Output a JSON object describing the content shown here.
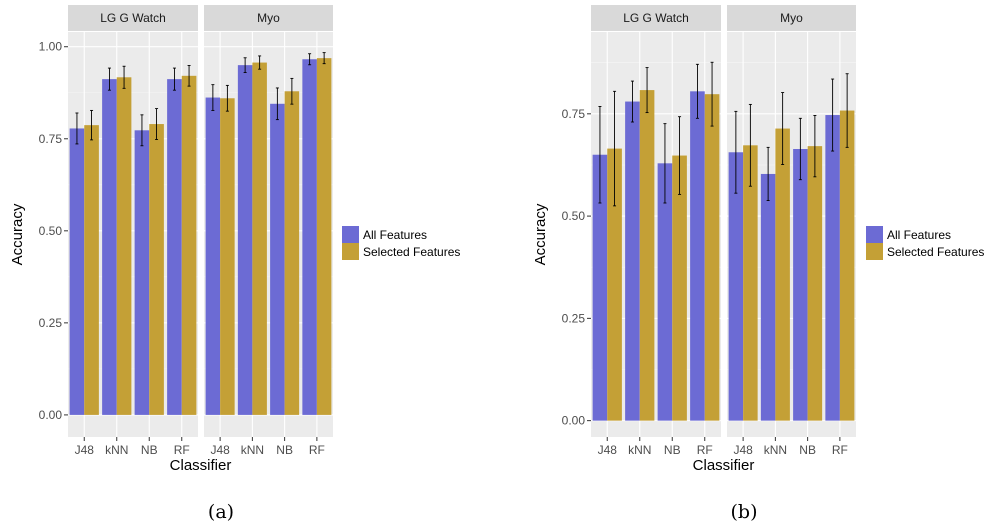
{
  "chart_data": [
    {
      "type": "bar",
      "caption": "(a)",
      "facets": [
        "LG G Watch",
        "Myo"
      ],
      "categories": [
        "J48",
        "kNN",
        "NB",
        "RF"
      ],
      "xlabel": "Classifier",
      "ylabel": "Accuracy",
      "ylim": [
        -0.06,
        1.04
      ],
      "yticks": [
        0.0,
        0.25,
        0.5,
        0.75,
        1.0
      ],
      "ytick_labels": [
        "0.00",
        "0.25",
        "0.50",
        "0.75",
        "1.00"
      ],
      "legend_position": "right",
      "grid": true,
      "series": [
        {
          "name": "All Features",
          "color": "#6c6bd4",
          "values": {
            "LG G Watch": [
              0.778,
              0.912,
              0.773,
              0.912
            ],
            "Myo": [
              0.862,
              0.95,
              0.845,
              0.966
            ]
          },
          "errors": {
            "LG G Watch": [
              0.042,
              0.03,
              0.042,
              0.03
            ],
            "Myo": [
              0.035,
              0.02,
              0.043,
              0.015
            ]
          }
        },
        {
          "name": "Selected Features",
          "color": "#c4a036",
          "values": {
            "LG G Watch": [
              0.787,
              0.917,
              0.79,
              0.921
            ],
            "Myo": [
              0.86,
              0.957,
              0.879,
              0.969
            ]
          },
          "errors": {
            "LG G Watch": [
              0.04,
              0.03,
              0.042,
              0.028
            ],
            "Myo": [
              0.035,
              0.018,
              0.035,
              0.015
            ]
          }
        }
      ]
    },
    {
      "type": "bar",
      "caption": "(b)",
      "facets": [
        "LG G Watch",
        "Myo"
      ],
      "categories": [
        "J48",
        "kNN",
        "NB",
        "RF"
      ],
      "xlabel": "Classifier",
      "ylabel": "Accuracy",
      "ylim": [
        -0.04,
        0.95
      ],
      "yticks": [
        0.0,
        0.25,
        0.5,
        0.75
      ],
      "ytick_labels": [
        "0.00",
        "0.25",
        "0.50",
        "0.75"
      ],
      "legend_position": "right",
      "grid": true,
      "series": [
        {
          "name": "All Features",
          "color": "#6c6bd4",
          "values": {
            "LG G Watch": [
              0.65,
              0.78,
              0.629,
              0.805
            ],
            "Myo": [
              0.656,
              0.603,
              0.664,
              0.747
            ]
          },
          "errors": {
            "LG G Watch": [
              0.118,
              0.05,
              0.097,
              0.066
            ],
            "Myo": [
              0.1,
              0.065,
              0.075,
              0.088
            ]
          }
        },
        {
          "name": "Selected Features",
          "color": "#c4a036",
          "values": {
            "LG G Watch": [
              0.665,
              0.808,
              0.648,
              0.798
            ],
            "Myo": [
              0.673,
              0.714,
              0.671,
              0.758
            ]
          },
          "errors": {
            "LG G Watch": [
              0.14,
              0.055,
              0.095,
              0.078
            ],
            "Myo": [
              0.1,
              0.088,
              0.075,
              0.09
            ]
          }
        }
      ]
    }
  ]
}
